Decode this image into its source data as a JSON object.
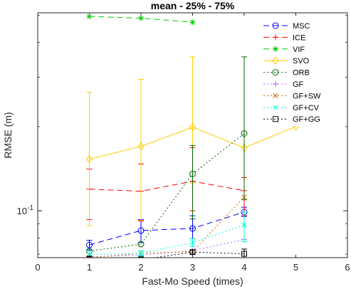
{
  "chart_data": {
    "type": "line",
    "title": "mean - 25% - 75%",
    "xlabel": "Fast-Mo Speed (times)",
    "ylabel": "RMSE (m)",
    "xlim": [
      0,
      6
    ],
    "ylim": [
      0.068,
      0.51
    ],
    "yscale": "log",
    "xticks": [
      0,
      1,
      2,
      3,
      4,
      5,
      6
    ],
    "xtick_labels": [
      "0",
      "1",
      "2",
      "3",
      "4",
      "5",
      "6"
    ],
    "yticks": [
      0.1
    ],
    "ytick_labels": [
      "10^-1"
    ],
    "grid": false,
    "legend_position": "top-right",
    "series": [
      {
        "name": "MSC",
        "color": "#0000ff",
        "dash": "8,5",
        "marker": "circle",
        "points": [
          {
            "x": 1,
            "y": 0.0755,
            "lo": 0.0725,
            "hi": 0.0785
          },
          {
            "x": 2,
            "y": 0.085,
            "lo": 0.077,
            "hi": 0.093
          },
          {
            "x": 3,
            "y": 0.0865,
            "lo": 0.0795,
            "hi": 0.096
          },
          {
            "x": 4,
            "y": 0.099,
            "lo": 0.0955,
            "hi": 0.103
          }
        ]
      },
      {
        "name": "ICE",
        "color": "#ff0000",
        "dash": "8,5",
        "marker": "plus",
        "points": [
          {
            "x": 1,
            "y": 0.1195,
            "lo": 0.093,
            "hi": 0.141
          },
          {
            "x": 2,
            "y": 0.1175,
            "lo": 0.092,
            "hi": 0.147
          },
          {
            "x": 3,
            "y": 0.1275,
            "lo": 0.1,
            "hi": 0.168
          },
          {
            "x": 4,
            "y": 0.118,
            "lo": 0.096,
            "hi": 0.1315
          }
        ]
      },
      {
        "name": "VIF",
        "color": "#00cc00",
        "dash": "8,5",
        "marker": "star",
        "points": [
          {
            "x": 1,
            "y": 0.495
          },
          {
            "x": 2,
            "y": 0.488
          },
          {
            "x": 3,
            "y": 0.472
          }
        ]
      },
      {
        "name": "SVO",
        "color": "#ffcc00",
        "dash": "none",
        "marker": "diamond",
        "points": [
          {
            "x": 1,
            "y": 0.153,
            "lo": 0.0885,
            "hi": 0.265
          },
          {
            "x": 2,
            "y": 0.17,
            "lo": 0.0925,
            "hi": 0.295
          },
          {
            "x": 3,
            "y": 0.199,
            "lo": 0.1255,
            "hi": 0.355
          },
          {
            "x": 4,
            "y": 0.168
          },
          {
            "x": 5,
            "y": 0.2
          }
        ]
      },
      {
        "name": "ORB",
        "color": "#006600",
        "dash": "2,3",
        "marker": "circle",
        "points": [
          {
            "x": 1,
            "y": 0.0718
          },
          {
            "x": 2,
            "y": 0.076
          },
          {
            "x": 3,
            "y": 0.1355,
            "lo": 0.0935,
            "hi": 0.171
          },
          {
            "x": 4,
            "y": 0.189,
            "lo": 0.1095,
            "hi": 0.355
          }
        ]
      },
      {
        "name": "GF",
        "color": "#aa66ff",
        "dash": "2,3",
        "marker": "plus",
        "points": [
          {
            "x": 1,
            "y": 0.0685
          },
          {
            "x": 2,
            "y": 0.0695
          },
          {
            "x": 3,
            "y": 0.072
          },
          {
            "x": 4,
            "y": 0.079
          }
        ]
      },
      {
        "name": "GF+SW",
        "color": "#cc6600",
        "dash": "2,3",
        "marker": "x",
        "points": [
          {
            "x": 1,
            "y": 0.068
          },
          {
            "x": 2,
            "y": 0.0705
          },
          {
            "x": 3,
            "y": 0.0715
          },
          {
            "x": 4,
            "y": 0.112
          }
        ]
      },
      {
        "name": "GF+CV",
        "color": "#00ffcc",
        "dash": "2,3",
        "marker": "x",
        "points": [
          {
            "x": 1,
            "y": 0.0698,
            "lo": 0.0675,
            "hi": 0.072
          },
          {
            "x": 2,
            "y": 0.0705,
            "lo": 0.069,
            "hi": 0.072
          },
          {
            "x": 3,
            "y": 0.077,
            "lo": 0.0745,
            "hi": 0.0795
          },
          {
            "x": 4,
            "y": 0.089,
            "lo": 0.0775,
            "hi": 0.099
          }
        ]
      },
      {
        "name": "GF+GG",
        "color": "#000000",
        "dash": "2,3",
        "marker": "square",
        "points": [
          {
            "x": 1,
            "y": 0.0675,
            "lo": 0.0665,
            "hi": 0.0685
          },
          {
            "x": 2,
            "y": 0.0668,
            "lo": 0.066,
            "hi": 0.0685
          },
          {
            "x": 3,
            "y": 0.0712,
            "lo": 0.07,
            "hi": 0.0725
          },
          {
            "x": 4,
            "y": 0.0702,
            "lo": 0.0675,
            "hi": 0.073
          }
        ]
      }
    ]
  }
}
